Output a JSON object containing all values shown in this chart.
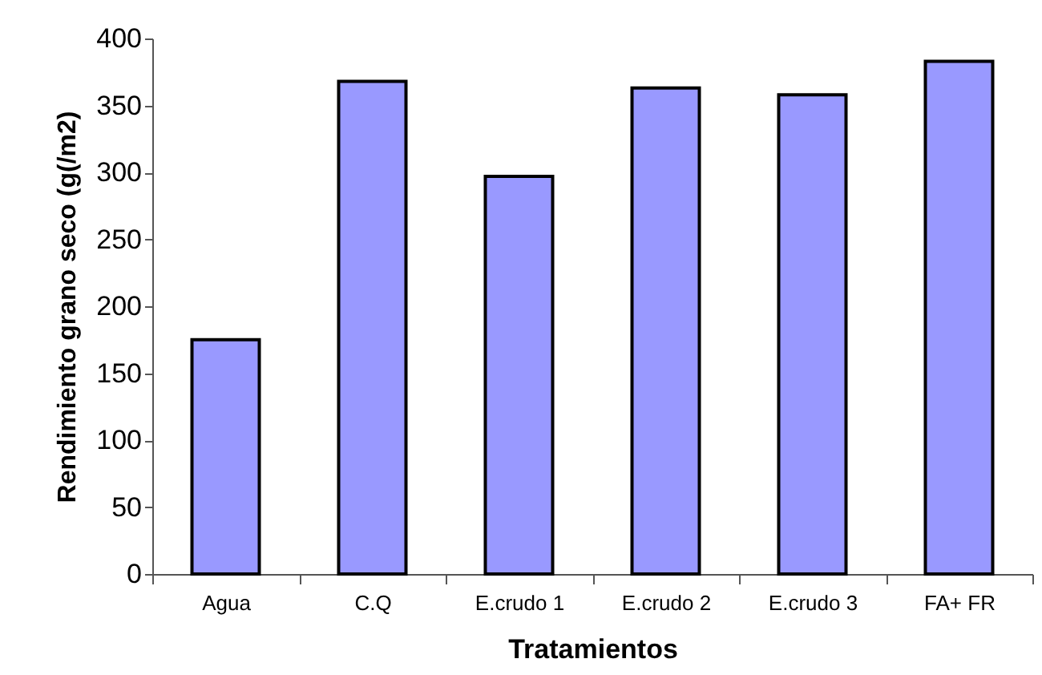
{
  "chart_data": {
    "type": "bar",
    "categories": [
      "Agua",
      "C.Q",
      "E.crudo 1",
      "E.crudo 2",
      "E.crudo 3",
      "FA+ FR"
    ],
    "values": [
      175,
      368,
      297,
      363,
      358,
      383
    ],
    "color": "#9999ff",
    "xlabel": "Tratamientos",
    "ylabel": "Rendimiento grano seco (g(/m2)",
    "ylim": [
      0,
      400
    ],
    "yticks": [
      0,
      50,
      100,
      150,
      200,
      250,
      300,
      350,
      400
    ],
    "grid": false
  }
}
